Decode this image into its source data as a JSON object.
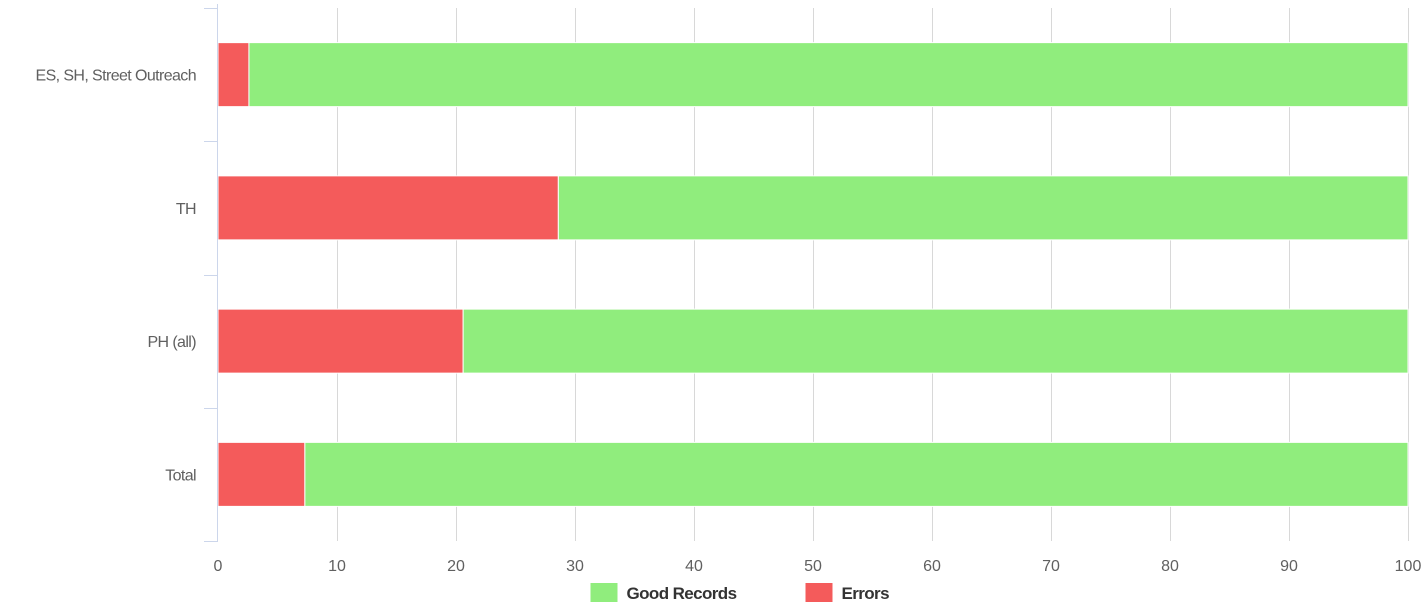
{
  "chart_data": {
    "type": "bar",
    "orientation": "horizontal",
    "stacked": true,
    "categories": [
      "ES, SH, Street Outreach",
      "TH",
      "PH (all)",
      "Total"
    ],
    "series": [
      {
        "name": "Errors",
        "color": "#f45b5b",
        "values": [
          2.6,
          28.6,
          20.6,
          7.3
        ]
      },
      {
        "name": "Good Records",
        "color": "#90ed7d",
        "values": [
          97.4,
          71.4,
          79.4,
          92.7
        ]
      }
    ],
    "xlim": [
      0,
      100
    ],
    "xticks": [
      0,
      10,
      20,
      30,
      40,
      50,
      60,
      70,
      80,
      90,
      100
    ],
    "grid": true,
    "legend_position": "bottom-center",
    "legend": [
      {
        "name": "Good Records",
        "color": "#90ed7d"
      },
      {
        "name": "Errors",
        "color": "#f45b5b"
      }
    ]
  }
}
